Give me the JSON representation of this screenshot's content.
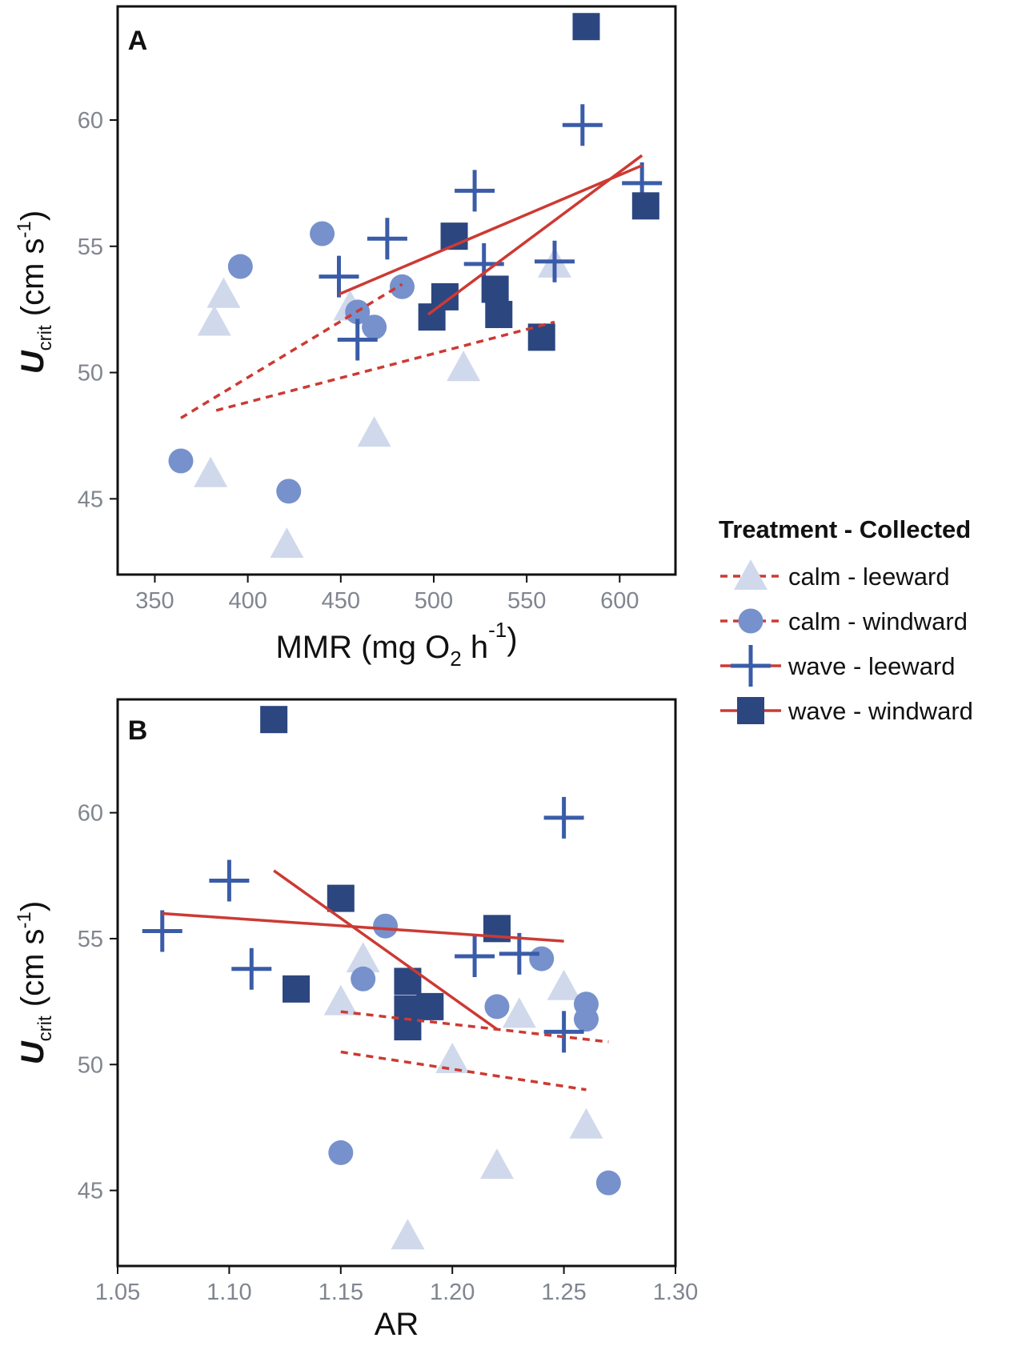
{
  "colors": {
    "calm_leeward": "#d0d8ec",
    "calm_windward": "#7691cc",
    "wave_leeward": "#3a5ca8",
    "wave_windward": "#2c4680",
    "fit_line": "#cc3a33",
    "axis": "#111111",
    "tick_text": "#808590"
  },
  "legend": {
    "title": "Treatment - Collected",
    "placement": "right",
    "entries": [
      {
        "key": "calm_leeward",
        "treatment": "calm",
        "collected": "leeward",
        "shape": "triangle",
        "line": "dashed"
      },
      {
        "key": "calm_windward",
        "treatment": "calm",
        "collected": "windward",
        "shape": "circle",
        "line": "dashed"
      },
      {
        "key": "wave_leeward",
        "treatment": "wave",
        "collected": "leeward",
        "shape": "cross",
        "line": "solid"
      },
      {
        "key": "wave_windward",
        "treatment": "wave",
        "collected": "windward",
        "shape": "square",
        "line": "solid"
      }
    ]
  },
  "chart_data": [
    {
      "type": "scatter",
      "panel_label": "A",
      "xlabel": "MMR (mg O₂ h⁻¹)",
      "ylabel": {
        "main": "U",
        "sub": "crit",
        "unit": " (cm s",
        "sup": "-1",
        "close": ")"
      },
      "xlim": [
        330,
        630
      ],
      "ylim": [
        42,
        64.5
      ],
      "xticks": [
        350,
        400,
        450,
        500,
        550,
        600
      ],
      "yticks": [
        45,
        50,
        55,
        60
      ],
      "grid": false,
      "series": [
        {
          "key": "calm_leeward",
          "points": [
            [
              380,
              46.0
            ],
            [
              382,
              52.0
            ],
            [
              387,
              53.1
            ],
            [
              421,
              43.2
            ],
            [
              455,
              52.6
            ],
            [
              468,
              47.6
            ],
            [
              516,
              50.2
            ],
            [
              565,
              54.3
            ]
          ]
        },
        {
          "key": "calm_windward",
          "points": [
            [
              364,
              46.5
            ],
            [
              396,
              54.2
            ],
            [
              422,
              45.3
            ],
            [
              440,
              55.5
            ],
            [
              459,
              52.4
            ],
            [
              468,
              51.8
            ],
            [
              483,
              53.4
            ]
          ]
        },
        {
          "key": "wave_leeward",
          "points": [
            [
              449,
              53.8
            ],
            [
              459,
              51.3
            ],
            [
              475,
              55.3
            ],
            [
              522,
              57.2
            ],
            [
              527,
              54.3
            ],
            [
              565,
              54.4
            ],
            [
              580,
              59.8
            ],
            [
              612,
              57.5
            ]
          ]
        },
        {
          "key": "wave_windward",
          "points": [
            [
              499,
              52.2
            ],
            [
              506,
              53.0
            ],
            [
              511,
              55.4
            ],
            [
              533,
              53.3
            ],
            [
              535,
              52.3
            ],
            [
              558,
              51.4
            ],
            [
              582,
              63.7
            ],
            [
              614,
              56.6
            ]
          ]
        }
      ],
      "fits": [
        {
          "key": "calm_leeward",
          "x": [
            383,
            565
          ],
          "y": [
            48.5,
            52.0
          ]
        },
        {
          "key": "calm_windward",
          "x": [
            364,
            483
          ],
          "y": [
            48.2,
            53.5
          ]
        },
        {
          "key": "wave_leeward",
          "x": [
            497,
            612
          ],
          "y": [
            52.3,
            58.6
          ]
        },
        {
          "key": "wave_windward",
          "x": [
            449,
            612
          ],
          "y": [
            53.1,
            58.2
          ]
        }
      ]
    },
    {
      "type": "scatter",
      "panel_label": "B",
      "xlabel": "AR",
      "ylabel": {
        "main": "U",
        "sub": "crit",
        "unit": " (cm s",
        "sup": "-1",
        "close": ")"
      },
      "xlim": [
        1.05,
        1.3
      ],
      "ylim": [
        42,
        64.5
      ],
      "xticks": [
        "1.05",
        "1.10",
        "1.15",
        "1.20",
        "1.25",
        "1.30"
      ],
      "yticks": [
        45,
        50,
        55,
        60
      ],
      "grid": false,
      "series": [
        {
          "key": "calm_leeward",
          "points": [
            [
              1.15,
              52.5
            ],
            [
              1.16,
              54.2
            ],
            [
              1.18,
              43.2
            ],
            [
              1.2,
              50.2
            ],
            [
              1.22,
              46.0
            ],
            [
              1.23,
              52.0
            ],
            [
              1.25,
              53.1
            ],
            [
              1.26,
              47.6
            ]
          ]
        },
        {
          "key": "calm_windward",
          "points": [
            [
              1.15,
              46.5
            ],
            [
              1.16,
              53.4
            ],
            [
              1.17,
              55.5
            ],
            [
              1.22,
              52.3
            ],
            [
              1.24,
              54.2
            ],
            [
              1.26,
              52.4
            ],
            [
              1.26,
              51.8
            ],
            [
              1.27,
              45.3
            ]
          ]
        },
        {
          "key": "wave_leeward",
          "points": [
            [
              1.07,
              55.3
            ],
            [
              1.1,
              57.3
            ],
            [
              1.11,
              53.8
            ],
            [
              1.21,
              54.3
            ],
            [
              1.23,
              54.4
            ],
            [
              1.25,
              59.8
            ],
            [
              1.25,
              51.3
            ]
          ]
        },
        {
          "key": "wave_windward",
          "points": [
            [
              1.12,
              63.7
            ],
            [
              1.13,
              53.0
            ],
            [
              1.15,
              56.6
            ],
            [
              1.18,
              53.3
            ],
            [
              1.18,
              52.2
            ],
            [
              1.18,
              51.5
            ],
            [
              1.19,
              52.3
            ],
            [
              1.22,
              55.4
            ]
          ]
        }
      ],
      "fits": [
        {
          "key": "calm_leeward",
          "x": [
            1.15,
            1.26
          ],
          "y": [
            50.5,
            49.0
          ]
        },
        {
          "key": "calm_windward",
          "x": [
            1.15,
            1.27
          ],
          "y": [
            52.1,
            50.9
          ]
        },
        {
          "key": "wave_leeward",
          "x": [
            1.12,
            1.22
          ],
          "y": [
            57.7,
            51.4
          ]
        },
        {
          "key": "wave_windward",
          "x": [
            1.07,
            1.25
          ],
          "y": [
            56.0,
            54.9
          ]
        }
      ]
    }
  ]
}
